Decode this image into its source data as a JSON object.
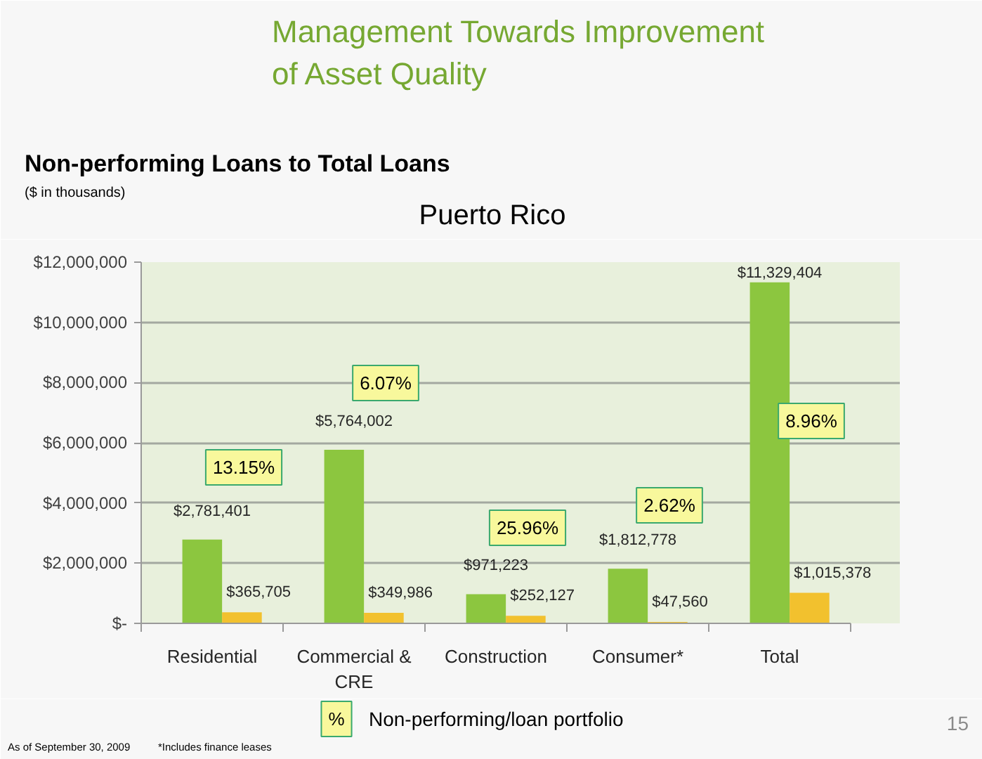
{
  "chart_data": {
    "type": "bar",
    "title": "Management Towards Improvement\nof Asset Quality",
    "subtitle": "Non-performing Loans to Total Loans",
    "categories": [
      "Residential",
      "Commercial & CRE",
      "Construction",
      "Consumer*",
      "Total"
    ],
    "series": [
      {
        "color": "#8cc63f",
        "values": [
          2781401,
          5764002,
          971223,
          1812778,
          11329404
        ],
        "value_labels": [
          "$2,781,401",
          "$5,764,002",
          "$971,223",
          "$1,812,778",
          "$11,329,404"
        ]
      },
      {
        "color": "#f2c12e",
        "values": [
          365705,
          349986,
          252127,
          47560,
          1015378
        ],
        "value_labels": [
          "$365,705",
          "$349,986",
          "$252,127",
          "$47,560",
          "$1,015,378"
        ]
      }
    ],
    "ylim": [
      0,
      12000000
    ],
    "yticks": [
      {
        "value": 0,
        "label": "$-"
      },
      {
        "value": 2000000,
        "label": "$2,000,000"
      },
      {
        "value": 4000000,
        "label": "$4,000,000"
      },
      {
        "value": 6000000,
        "label": "$6,000,000"
      },
      {
        "value": 8000000,
        "label": "$8,000,000"
      },
      {
        "value": 10000000,
        "label": "$10,000,000"
      },
      {
        "value": 12000000,
        "label": "$12,000,000"
      }
    ],
    "grid": "y",
    "annotations": [
      "($ in thousands)",
      "Puerto Rico",
      "13.15%",
      "6.07%",
      "25.96%",
      "2.62%",
      "8.96%",
      "%",
      "Non-performing/loan portfolio",
      "As of September 30, 2009",
      "*Includes finance leases",
      "15"
    ]
  }
}
